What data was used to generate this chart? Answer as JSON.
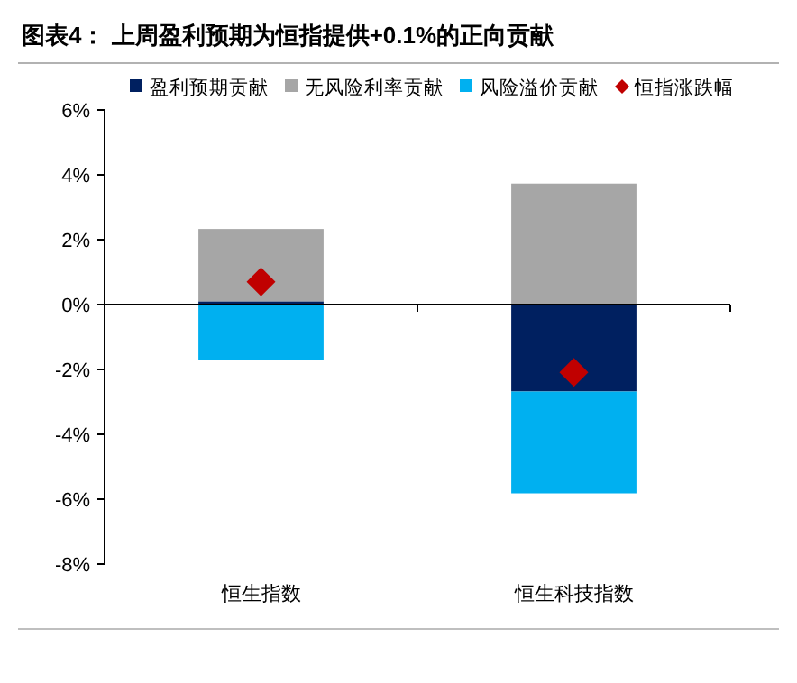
{
  "chart_data": {
    "type": "bar",
    "title": "图表4：  上周盈利预期为恒指提供+0.1%的正向贡献",
    "categories": [
      "恒生指数",
      "恒生科技指数"
    ],
    "stacked": true,
    "series": [
      {
        "name": "盈利预期贡献",
        "color": "#002060",
        "values": [
          0.1,
          -2.68
        ]
      },
      {
        "name": "无风险利率贡献",
        "color": "#a6a6a6",
        "values": [
          2.23,
          3.73
        ]
      },
      {
        "name": "风险溢价贡献",
        "color": "#00b0f0",
        "values": [
          -1.7,
          -3.14
        ]
      },
      {
        "name": "恒指涨跌幅",
        "type": "scatter",
        "marker": "diamond",
        "color": "#c00000",
        "values": [
          0.7,
          -2.09
        ]
      }
    ],
    "ylim": [
      -8,
      6
    ],
    "yticks": [
      {
        "value": -8,
        "label": "-8%"
      },
      {
        "value": -6,
        "label": "-6%"
      },
      {
        "value": -4,
        "label": "-4%"
      },
      {
        "value": -2,
        "label": "-2%"
      },
      {
        "value": 0,
        "label": "0%"
      },
      {
        "value": 2,
        "label": "2%"
      },
      {
        "value": 4,
        "label": "4%"
      },
      {
        "value": 6,
        "label": "6%"
      }
    ],
    "legend": "top"
  }
}
